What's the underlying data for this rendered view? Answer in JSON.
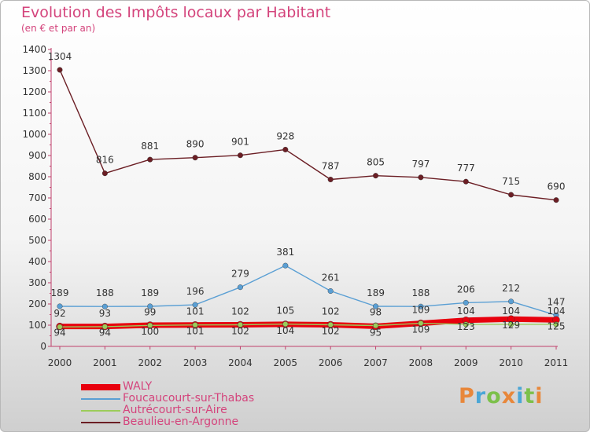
{
  "header": {
    "title": "Evolution des Impôts locaux par Habitant",
    "subtitle": "(en € et par an)"
  },
  "logo": {
    "text": "Proxiti",
    "colors": [
      "#e8873a",
      "#4aa6d6",
      "#7cc04a",
      "#e8873a",
      "#4aa6d6",
      "#7cc04a",
      "#e8873a"
    ]
  },
  "chart_data": {
    "type": "line",
    "title": "Evolution des Impôts locaux par Habitant",
    "subtitle": "(en € et par an)",
    "xlabel": "",
    "ylabel": "",
    "ylim": [
      0,
      1400
    ],
    "yticks": [
      0,
      100,
      200,
      300,
      400,
      500,
      600,
      700,
      800,
      900,
      1000,
      1100,
      1200,
      1300,
      1400
    ],
    "x": [
      "2000",
      "2001",
      "2002",
      "2003",
      "2004",
      "2005",
      "2006",
      "2007",
      "2008",
      "2009",
      "2010",
      "2011"
    ],
    "grid": false,
    "legend": "bottom-left",
    "series": [
      {
        "name": "Beaulieu-en-Argonne",
        "color": "#6b1e24",
        "values": [
          1304,
          816,
          881,
          890,
          901,
          928,
          787,
          805,
          797,
          777,
          715,
          690
        ],
        "labels": [
          "1304",
          "816",
          "881",
          "890",
          "901",
          "928",
          "787",
          "805",
          "797",
          "777",
          "715",
          "690"
        ]
      },
      {
        "name": "Foucaucourt-sur-Thabas",
        "color": "#5a9fd4",
        "values": [
          189,
          188,
          189,
          196,
          279,
          381,
          261,
          189,
          188,
          206,
          212,
          147
        ],
        "labels": [
          "189",
          "188",
          "189",
          "196",
          "279",
          "381",
          "261",
          "189",
          "188",
          "206",
          "212",
          "147"
        ]
      },
      {
        "name": "Autrécourt-sur-Aire",
        "color": "#9ccc5a",
        "values": [
          92,
          93,
          99,
          101,
          102,
          105,
          102,
          98,
          109,
          104,
          104,
          104
        ],
        "labels": [
          "92",
          "93",
          "99",
          "101",
          "102",
          "105",
          "102",
          "98",
          "109",
          "104",
          "104",
          "104"
        ]
      },
      {
        "name": "WALY",
        "color": "#e8000e",
        "values": [
          94,
          94,
          100,
          101,
          102,
          104,
          102,
          95,
          109,
          123,
          129,
          125
        ],
        "labels": [
          "94",
          "94",
          "100",
          "101",
          "102",
          "104",
          "102",
          "95",
          "109",
          "123",
          "129",
          "125"
        ]
      }
    ]
  },
  "legend": {
    "items": [
      {
        "label": "WALY",
        "color": "#e8000e"
      },
      {
        "label": "Foucaucourt-sur-Thabas",
        "color": "#5a9fd4"
      },
      {
        "label": "Autrécourt-sur-Aire",
        "color": "#9ccc5a"
      },
      {
        "label": "Beaulieu-en-Argonne",
        "color": "#6b1e24"
      }
    ]
  }
}
